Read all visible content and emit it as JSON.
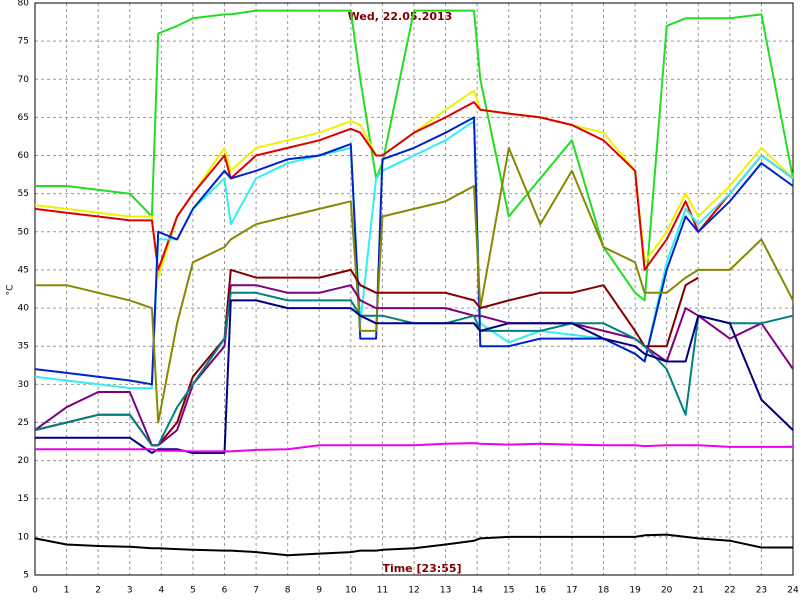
{
  "chart_data": {
    "type": "line",
    "title": "Wed, 22.05.2013",
    "xlabel": "Time [23:55]",
    "ylabel": "°C",
    "x": [
      0,
      1,
      2,
      3,
      3.7,
      3.9,
      4.5,
      5,
      6,
      6.2,
      7,
      8,
      9,
      10,
      10.3,
      10.8,
      11,
      12,
      13,
      13.9,
      14.1,
      15,
      16,
      17,
      18,
      19,
      19.3,
      20,
      20.6,
      21,
      22,
      23,
      24
    ],
    "xlim": [
      0,
      24
    ],
    "xticks": [
      0,
      1,
      2,
      3,
      4,
      5,
      6,
      7,
      8,
      9,
      10,
      11,
      12,
      13,
      14,
      15,
      16,
      17,
      18,
      19,
      20,
      21,
      22,
      23,
      24
    ],
    "ylim": [
      5,
      80
    ],
    "yticks": [
      5,
      10,
      15,
      20,
      25,
      30,
      35,
      40,
      45,
      50,
      55,
      60,
      65,
      70,
      75,
      80
    ],
    "grid": true,
    "series": [
      {
        "color": "#22dd22",
        "values": [
          56,
          56,
          55.5,
          55,
          52,
          76,
          77,
          78,
          78.5,
          78.5,
          79,
          79,
          79,
          79,
          70,
          57,
          59,
          79,
          79,
          79,
          70,
          52,
          57,
          62,
          48,
          42,
          41,
          77,
          78,
          78,
          78,
          78.5,
          57
        ]
      },
      {
        "color": "#f0f000",
        "values": [
          53.5,
          53,
          52.5,
          52,
          52,
          44,
          52,
          55,
          61,
          58,
          61,
          62,
          63,
          64.5,
          64,
          60,
          60,
          63,
          66,
          68.5,
          66,
          65.5,
          65,
          64,
          63,
          58,
          46,
          50,
          55,
          52,
          56,
          61,
          57
        ]
      },
      {
        "color": "#dd0000",
        "values": [
          53,
          52.5,
          52,
          51.5,
          51.5,
          45,
          52,
          55,
          60,
          57,
          60,
          61,
          62,
          63.5,
          63,
          60,
          60,
          63,
          65,
          67,
          66,
          65.5,
          65,
          64,
          62,
          58,
          45,
          49,
          54,
          50,
          55,
          60,
          57
        ]
      },
      {
        "color": "#33eeee",
        "values": [
          31,
          30.5,
          30,
          29.5,
          29.5,
          49,
          49,
          53,
          57,
          51,
          57,
          59,
          60,
          61,
          38,
          57,
          58,
          60,
          62,
          64.5,
          38,
          35.5,
          37,
          36.5,
          36,
          34,
          33,
          46,
          53,
          51,
          55,
          60,
          57
        ]
      },
      {
        "color": "#0022cc",
        "values": [
          32,
          31.5,
          31,
          30.5,
          30,
          50,
          49,
          53,
          58,
          57,
          58,
          59.5,
          60,
          61.5,
          36,
          36,
          59.5,
          61,
          63,
          65,
          35,
          35,
          36,
          36,
          36,
          34,
          33,
          45,
          52,
          50,
          54,
          59,
          56
        ]
      },
      {
        "color": "#888800",
        "values": [
          43,
          43,
          42,
          41,
          40,
          25,
          38,
          46,
          48,
          49,
          51,
          52,
          53,
          54,
          37,
          37,
          52,
          53,
          54,
          56,
          40,
          61,
          51,
          58,
          48,
          46,
          42,
          42,
          44,
          45,
          45,
          49,
          41
        ]
      },
      {
        "color": "#800000",
        "values": [
          24,
          25,
          26,
          26,
          22,
          22,
          25,
          31,
          36,
          45,
          44,
          44,
          44,
          45,
          43,
          42,
          42,
          42,
          42,
          41,
          40,
          41,
          42,
          42,
          43,
          37,
          35,
          35,
          43,
          44,
          null,
          null,
          null
        ]
      },
      {
        "color": "#800080",
        "values": [
          24,
          27,
          29,
          29,
          22,
          22,
          24,
          30,
          35,
          43,
          43,
          42,
          42,
          43,
          41,
          40,
          40,
          40,
          40,
          39,
          39,
          38,
          38,
          38,
          37,
          36,
          35,
          33,
          40,
          39,
          36,
          38,
          32
        ]
      },
      {
        "color": "#008080",
        "values": [
          24,
          25,
          26,
          26,
          22,
          22,
          27,
          30,
          36,
          42,
          42,
          41,
          41,
          41,
          39,
          39,
          39,
          38,
          38,
          39,
          37,
          37,
          37,
          38,
          38,
          36,
          35,
          32,
          26,
          39,
          38,
          38,
          39
        ]
      },
      {
        "color": "#000080",
        "values": [
          23,
          23,
          23,
          23,
          21,
          21.5,
          21.5,
          21,
          21,
          41,
          41,
          40,
          40,
          40,
          39,
          38,
          38,
          38,
          38,
          38,
          37,
          38,
          38,
          38,
          36,
          35,
          34,
          33,
          33,
          39,
          38,
          28,
          24
        ]
      },
      {
        "color": "#ee00ee",
        "values": [
          21.5,
          21.5,
          21.5,
          21.5,
          21.5,
          21.3,
          21.3,
          21.2,
          21.2,
          21.2,
          21.4,
          21.5,
          22,
          22,
          22,
          22,
          22,
          22,
          22.2,
          22.3,
          22.2,
          22.1,
          22.2,
          22.1,
          22,
          22,
          21.9,
          22,
          22,
          22,
          21.8,
          21.8,
          21.8
        ]
      },
      {
        "color": "#000000",
        "values": [
          9.8,
          9,
          8.8,
          8.7,
          8.5,
          8.5,
          8.4,
          8.3,
          8.2,
          8.2,
          8,
          7.6,
          7.8,
          8,
          8.2,
          8.2,
          8.3,
          8.5,
          9,
          9.5,
          9.8,
          10,
          10,
          10,
          10,
          10,
          10.2,
          10.3,
          10,
          9.8,
          9.5,
          8.6,
          8.6
        ]
      }
    ]
  }
}
